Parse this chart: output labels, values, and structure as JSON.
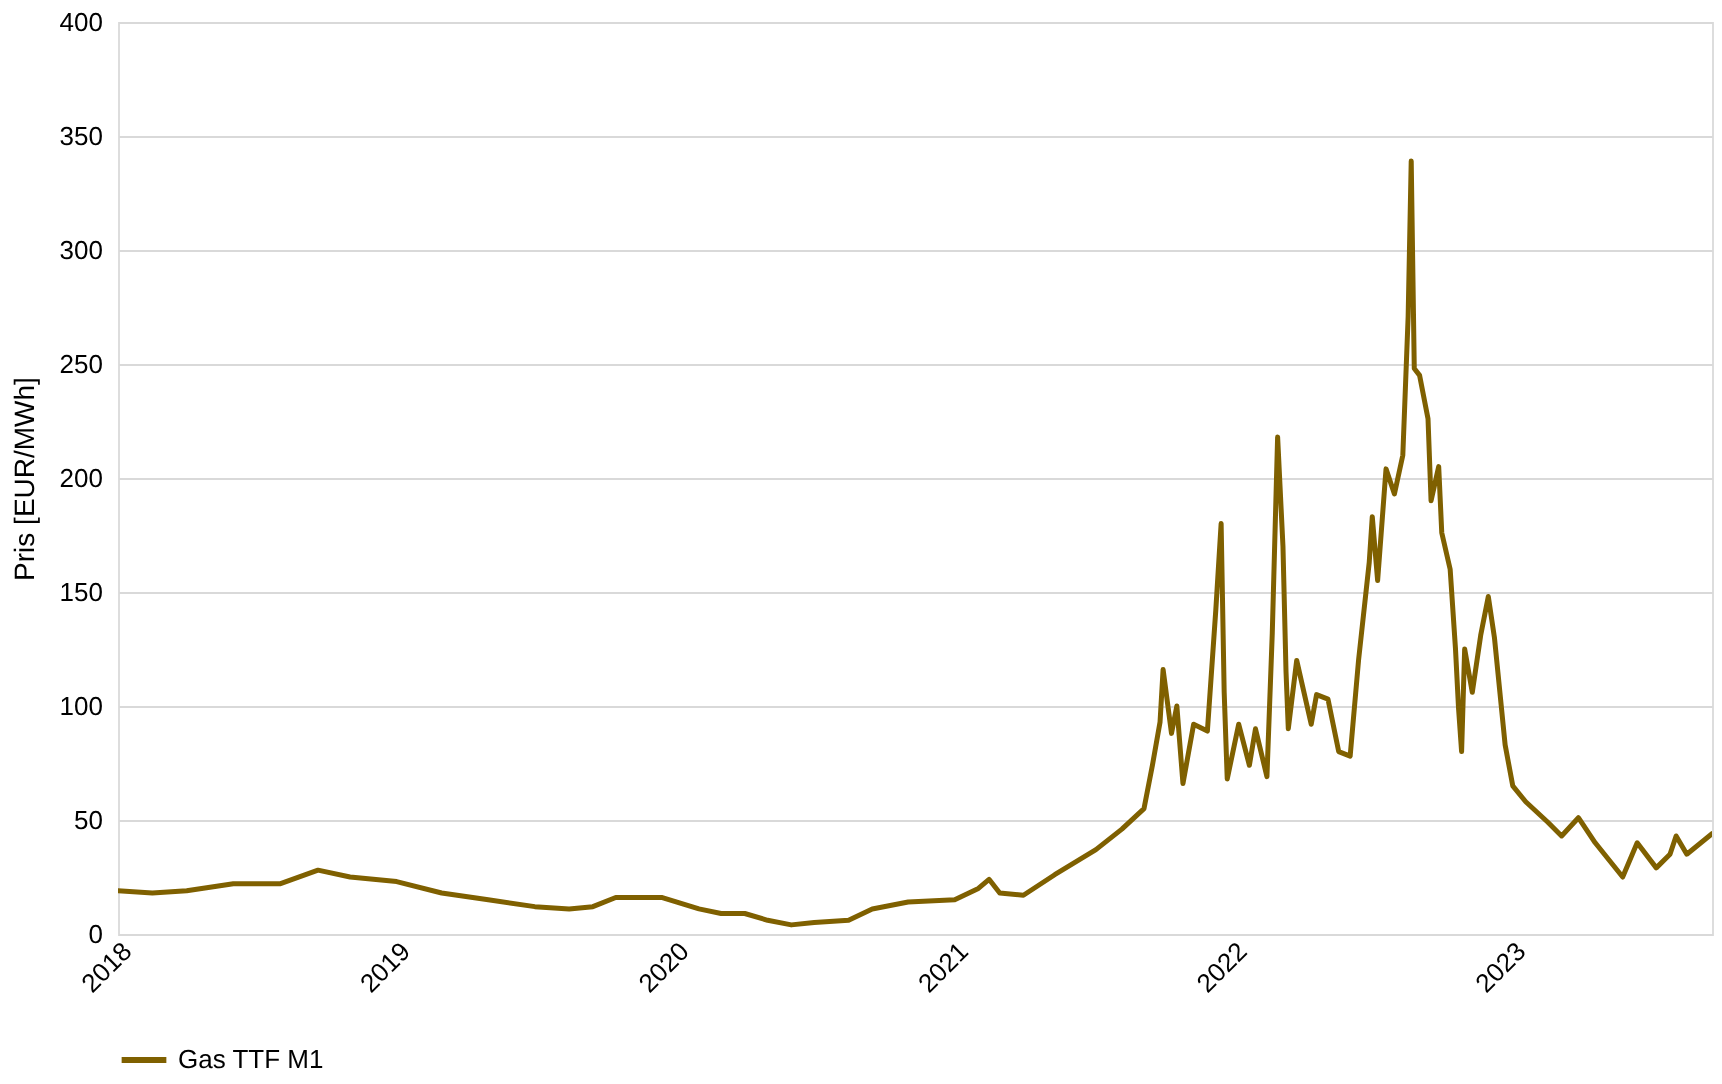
{
  "chart_data": {
    "type": "line",
    "ylabel": "Pris [EUR/MWh]",
    "xlim": [
      "2018-01-01",
      "2023-09-20"
    ],
    "xticks": [
      "2018",
      "2019",
      "2020",
      "2021",
      "2022",
      "2023"
    ],
    "ylim": [
      0,
      400
    ],
    "yticks": [
      0,
      50,
      100,
      150,
      200,
      250,
      300,
      350,
      400
    ],
    "grid": "y",
    "legend": "bottom",
    "line_style": "solid",
    "marker": "none",
    "series": [
      {
        "name": "Gas TTF M1",
        "color": "#7f6000",
        "x": [
          "2018-01-01",
          "2018-02-15",
          "2018-04-01",
          "2018-06-01",
          "2018-08-01",
          "2018-09-20",
          "2018-11-01",
          "2019-01-01",
          "2019-03-01",
          "2019-05-01",
          "2019-07-01",
          "2019-08-15",
          "2019-09-15",
          "2019-10-15",
          "2019-12-15",
          "2020-02-01",
          "2020-03-01",
          "2020-04-01",
          "2020-05-01",
          "2020-06-01",
          "2020-07-01",
          "2020-08-15",
          "2020-09-15",
          "2020-11-01",
          "2021-01-01",
          "2021-02-01",
          "2021-02-15",
          "2021-03-01",
          "2021-04-01",
          "2021-05-12",
          "2021-07-05",
          "2021-08-08",
          "2021-09-06",
          "2021-09-17",
          "2021-09-27",
          "2021-10-01",
          "2021-10-12",
          "2021-10-19",
          "2021-10-27",
          "2021-11-10",
          "2021-11-28",
          "2021-12-09",
          "2021-12-16",
          "2021-12-20",
          "2021-12-24",
          "2022-01-08",
          "2022-01-22",
          "2022-01-30",
          "2022-02-14",
          "2022-02-21",
          "2022-02-28",
          "2022-03-07",
          "2022-03-11",
          "2022-03-14",
          "2022-03-25",
          "2022-04-13",
          "2022-04-20",
          "2022-05-05",
          "2022-05-19",
          "2022-06-03",
          "2022-06-14",
          "2022-06-28",
          "2022-07-02",
          "2022-07-09",
          "2022-07-20",
          "2022-07-31",
          "2022-08-11",
          "2022-08-18",
          "2022-08-22",
          "2022-08-26",
          "2022-09-02",
          "2022-09-13",
          "2022-09-17",
          "2022-09-27",
          "2022-10-01",
          "2022-10-12",
          "2022-10-19",
          "2022-10-23",
          "2022-10-27",
          "2022-10-31",
          "2022-11-10",
          "2022-11-21",
          "2022-12-01",
          "2022-12-09",
          "2022-12-23",
          "2023-01-02",
          "2023-01-19",
          "2023-02-17",
          "2023-03-07",
          "2023-03-29",
          "2023-04-20",
          "2023-05-26",
          "2023-06-14",
          "2023-07-09",
          "2023-07-27",
          "2023-08-04",
          "2023-08-18",
          "2023-09-20"
        ],
        "values": [
          19,
          18,
          19,
          22,
          22,
          28,
          25,
          23,
          18,
          15,
          12,
          11,
          12,
          16,
          16,
          11,
          9,
          9,
          6,
          4,
          5,
          6,
          11,
          14,
          15,
          20,
          24,
          18,
          17,
          26,
          37,
          46,
          55,
          74,
          93,
          116,
          88,
          100,
          66,
          92,
          89,
          142,
          180,
          106,
          68,
          92,
          74,
          90,
          69,
          132,
          218,
          170,
          115,
          90,
          120,
          92,
          105,
          103,
          80,
          78,
          120,
          163,
          183,
          155,
          204,
          193,
          210,
          271,
          339,
          248,
          245,
          226,
          190,
          205,
          176,
          160,
          125,
          99,
          80,
          125,
          106,
          131,
          148,
          130,
          83,
          65,
          58,
          49,
          43,
          51,
          40,
          25,
          40,
          29,
          35,
          43,
          35,
          44
        ]
      }
    ]
  }
}
